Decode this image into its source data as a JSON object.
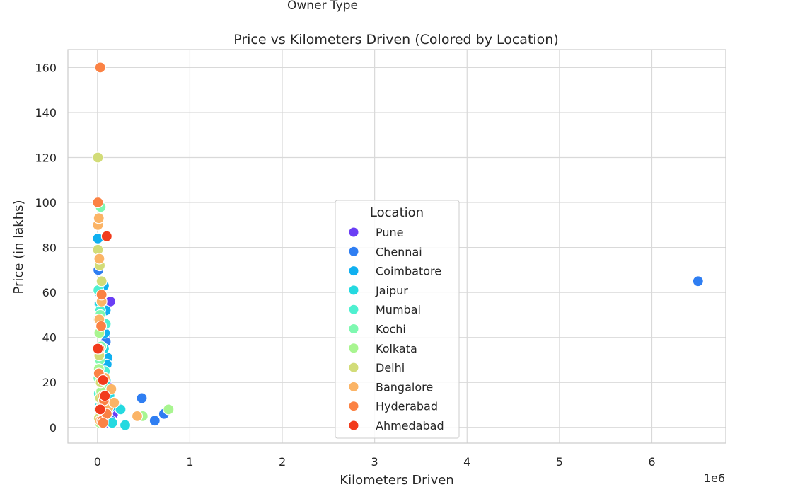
{
  "page": {
    "suptitle": "Owner Type"
  },
  "chart_data": {
    "type": "scatter",
    "title": "Price vs Kilometers Driven (Colored by Location)",
    "xlabel": "Kilometers Driven",
    "ylabel": "Price (in lakhs)",
    "x_offset_text": "1e6",
    "xlim": [
      -320000,
      6800000
    ],
    "ylim": [
      -7,
      168
    ],
    "x_ticks": [
      0,
      1000000,
      2000000,
      3000000,
      4000000,
      5000000,
      6000000
    ],
    "x_tick_labels": [
      "0",
      "1",
      "2",
      "3",
      "4",
      "5",
      "6"
    ],
    "y_ticks": [
      0,
      20,
      40,
      60,
      80,
      100,
      120,
      140,
      160
    ],
    "y_tick_labels": [
      "0",
      "20",
      "40",
      "60",
      "80",
      "100",
      "120",
      "140",
      "160"
    ],
    "grid": true,
    "legend": {
      "title": "Location",
      "placement": "center-bottom"
    },
    "series": [
      {
        "name": "Pune",
        "color": "#6a3ef5",
        "points": [
          [
            90000,
            2
          ],
          [
            120000,
            4
          ],
          [
            70000,
            8
          ],
          [
            140000,
            56
          ],
          [
            80000,
            41
          ],
          [
            60000,
            26
          ],
          [
            100000,
            19
          ],
          [
            170000,
            6
          ],
          [
            50000,
            12
          ],
          [
            30000,
            3
          ],
          [
            110000,
            7
          ],
          [
            200000,
            10
          ],
          [
            40000,
            33
          ]
        ]
      },
      {
        "name": "Chennai",
        "color": "#2f7ef2",
        "points": [
          [
            6500000,
            65
          ],
          [
            480000,
            13
          ],
          [
            720000,
            6
          ],
          [
            620000,
            3
          ],
          [
            20000,
            55
          ],
          [
            10000,
            70
          ],
          [
            60000,
            45
          ],
          [
            90000,
            38
          ],
          [
            40000,
            16
          ],
          [
            30000,
            8
          ],
          [
            110000,
            5
          ],
          [
            80000,
            22
          ],
          [
            150000,
            3
          ]
        ]
      },
      {
        "name": "Coimbatore",
        "color": "#10b0f0",
        "points": [
          [
            5000,
            84
          ],
          [
            40000,
            10
          ],
          [
            70000,
            63
          ],
          [
            90000,
            52
          ],
          [
            60000,
            18
          ],
          [
            110000,
            31
          ],
          [
            120000,
            16
          ],
          [
            30000,
            4
          ],
          [
            50000,
            7
          ],
          [
            80000,
            42
          ],
          [
            20000,
            60
          ],
          [
            140000,
            9
          ],
          [
            100000,
            28
          ]
        ]
      },
      {
        "name": "Jaipur",
        "color": "#24d9e0",
        "points": [
          [
            300000,
            1
          ],
          [
            250000,
            8
          ],
          [
            160000,
            2
          ],
          [
            40000,
            16
          ],
          [
            70000,
            35
          ],
          [
            110000,
            12
          ],
          [
            60000,
            6
          ],
          [
            30000,
            55
          ],
          [
            90000,
            21
          ],
          [
            20000,
            9
          ],
          [
            130000,
            14
          ],
          [
            50000,
            3
          ]
        ]
      },
      {
        "name": "Mumbai",
        "color": "#4ef0d0",
        "points": [
          [
            10000,
            61
          ],
          [
            30000,
            52
          ],
          [
            50000,
            20
          ],
          [
            70000,
            11
          ],
          [
            20000,
            34
          ],
          [
            40000,
            7
          ],
          [
            90000,
            46
          ],
          [
            60000,
            3
          ],
          [
            80000,
            25
          ],
          [
            15000,
            15
          ]
        ]
      },
      {
        "name": "Kochi",
        "color": "#7ef8b0",
        "points": [
          [
            35000,
            98
          ],
          [
            25000,
            30
          ],
          [
            40000,
            36
          ],
          [
            60000,
            18
          ],
          [
            20000,
            8
          ],
          [
            45000,
            12
          ],
          [
            30000,
            50
          ],
          [
            70000,
            6
          ],
          [
            10000,
            22
          ],
          [
            55000,
            4
          ]
        ]
      },
      {
        "name": "Kolkata",
        "color": "#a8f590",
        "points": [
          [
            770000,
            8
          ],
          [
            490000,
            5
          ],
          [
            20000,
            42
          ],
          [
            15000,
            26
          ],
          [
            40000,
            16
          ],
          [
            30000,
            6
          ],
          [
            60000,
            10
          ],
          [
            25000,
            2
          ]
        ]
      },
      {
        "name": "Delhi",
        "color": "#d2dc78",
        "points": [
          [
            5000,
            120
          ],
          [
            5000,
            79
          ],
          [
            25000,
            72
          ],
          [
            45000,
            65
          ],
          [
            10000,
            48
          ],
          [
            20000,
            32
          ],
          [
            35000,
            20
          ],
          [
            50000,
            10
          ],
          [
            15000,
            4
          ],
          [
            30000,
            13
          ]
        ]
      },
      {
        "name": "Bangalore",
        "color": "#fbb466",
        "points": [
          [
            5000,
            90
          ],
          [
            15000,
            93
          ],
          [
            20000,
            75
          ],
          [
            45000,
            56
          ],
          [
            80000,
            22
          ],
          [
            150000,
            17
          ],
          [
            430000,
            5
          ],
          [
            20000,
            48
          ],
          [
            60000,
            14
          ],
          [
            120000,
            9
          ],
          [
            30000,
            3
          ],
          [
            180000,
            11
          ]
        ]
      },
      {
        "name": "Hyderabad",
        "color": "#fb8244",
        "points": [
          [
            30000,
            160
          ],
          [
            5000,
            100
          ],
          [
            45000,
            59
          ],
          [
            40000,
            45
          ],
          [
            50000,
            3
          ],
          [
            20000,
            35
          ],
          [
            70000,
            12
          ],
          [
            100000,
            6
          ],
          [
            15000,
            24
          ],
          [
            60000,
            2
          ]
        ]
      },
      {
        "name": "Ahmedabad",
        "color": "#f23b1c",
        "points": [
          [
            100000,
            85
          ],
          [
            5000,
            35
          ],
          [
            60000,
            21
          ],
          [
            30000,
            8
          ],
          [
            80000,
            14
          ]
        ]
      }
    ]
  }
}
